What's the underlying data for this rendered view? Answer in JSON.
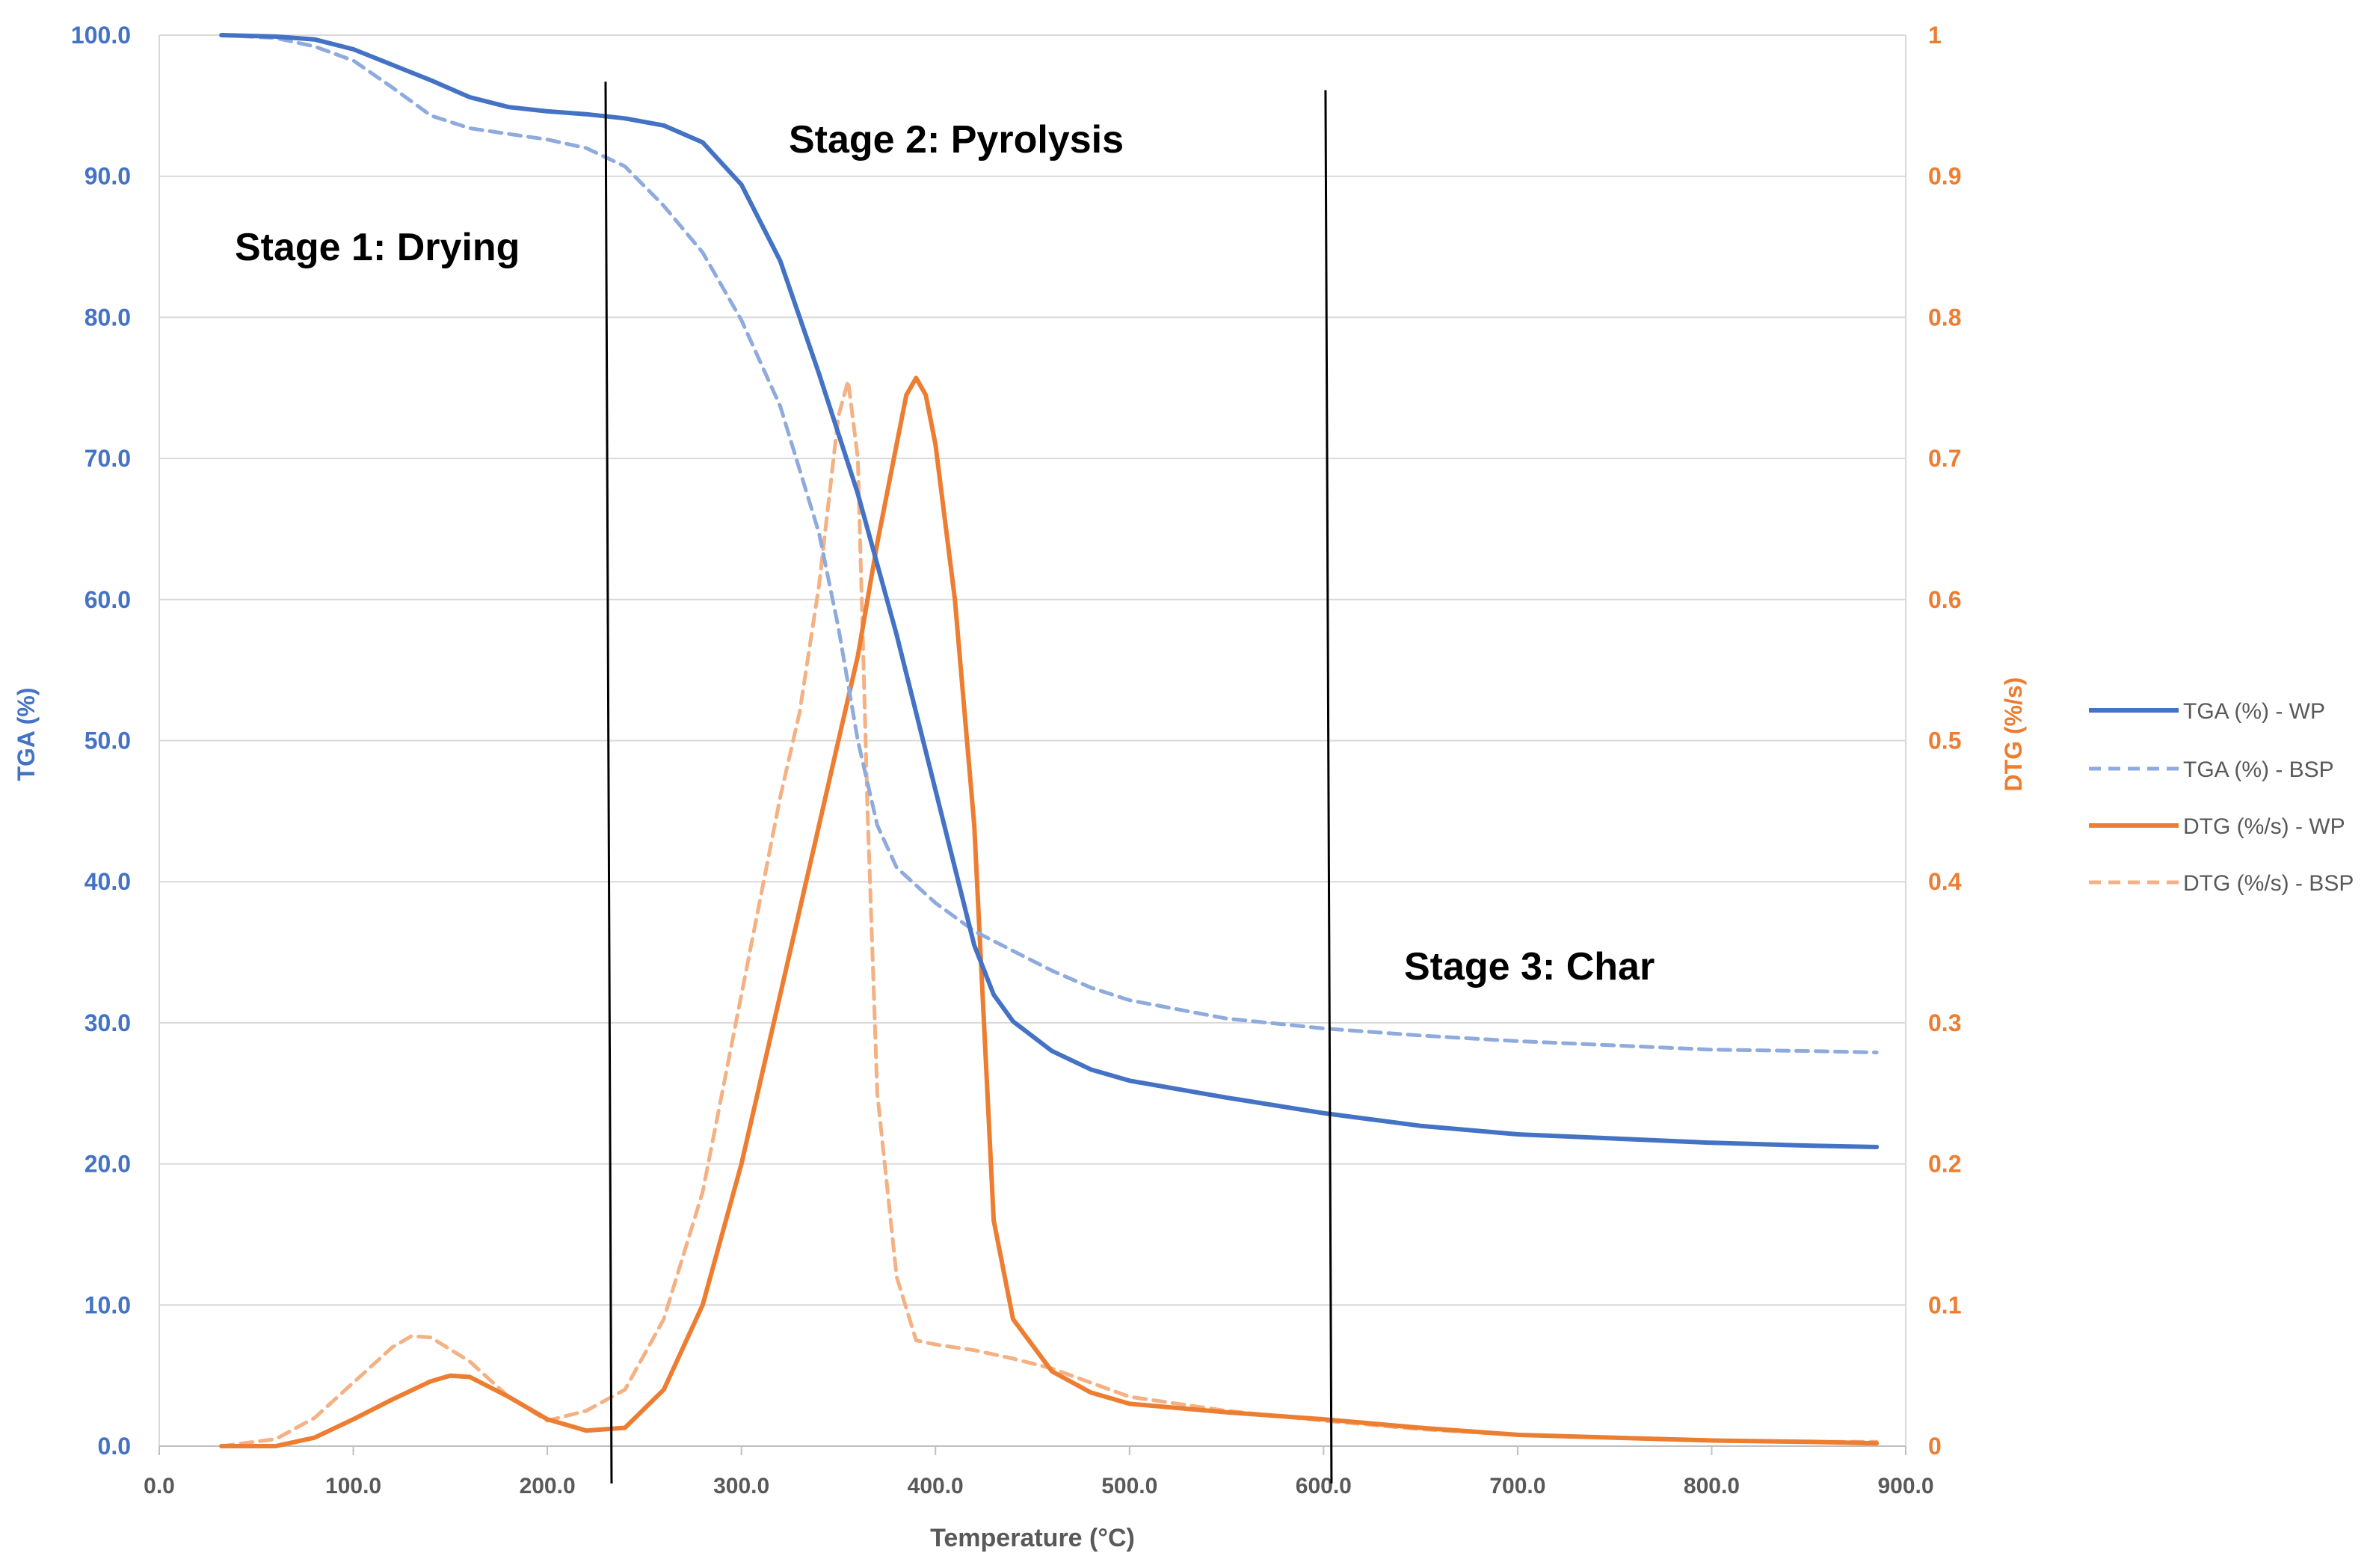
{
  "chart_data": {
    "type": "line",
    "title": "",
    "xlabel": "Temperature (°C)",
    "ylabel_left": "TGA (%)",
    "ylabel_right": "DTG (%/s)",
    "xlim": [
      0,
      900
    ],
    "ylim_left": [
      0,
      100
    ],
    "ylim_right": [
      0,
      1
    ],
    "grid": true,
    "legend_position": "right",
    "x_ticks": [
      "0.0",
      "100.0",
      "200.0",
      "300.0",
      "400.0",
      "500.0",
      "600.0",
      "700.0",
      "800.0",
      "900.0"
    ],
    "y_left_ticks": [
      "0.0",
      "10.0",
      "20.0",
      "30.0",
      "40.0",
      "50.0",
      "60.0",
      "70.0",
      "80.0",
      "90.0",
      "100.0"
    ],
    "y_right_ticks": [
      "0",
      "0.1",
      "0.2",
      "0.3",
      "0.4",
      "0.5",
      "0.6",
      "0.7",
      "0.8",
      "0.9",
      "1"
    ],
    "colors": {
      "tga_wp": "#4472C4",
      "tga_bsp": "#8FAADC",
      "dtg_wp": "#ED7D31",
      "dtg_bsp": "#F4B183",
      "stage_line": "#000000",
      "grid": "#D9D9D9"
    },
    "series": [
      {
        "name": "TGA (%) - WP",
        "axis": "left",
        "style": "solid",
        "color_key": "tga_wp",
        "x": [
          32,
          60,
          80,
          100,
          120,
          140,
          160,
          180,
          200,
          220,
          240,
          260,
          280,
          300,
          320,
          340,
          360,
          380,
          400,
          420,
          430,
          440,
          460,
          480,
          500,
          550,
          600,
          650,
          700,
          750,
          800,
          850,
          885
        ],
        "y": [
          100.0,
          99.9,
          99.7,
          99.0,
          97.9,
          96.8,
          95.6,
          94.9,
          94.6,
          94.4,
          94.1,
          93.6,
          92.4,
          89.4,
          84.0,
          76.0,
          67.5,
          57.5,
          46.5,
          35.5,
          32.0,
          30.1,
          28.0,
          26.7,
          25.9,
          24.7,
          23.6,
          22.7,
          22.1,
          21.8,
          21.5,
          21.3,
          21.2
        ]
      },
      {
        "name": "TGA (%) - BSP",
        "axis": "left",
        "style": "dashed",
        "color_key": "tga_bsp",
        "x": [
          32,
          60,
          80,
          100,
          120,
          140,
          160,
          180,
          200,
          220,
          240,
          260,
          280,
          300,
          320,
          340,
          350,
          360,
          370,
          380,
          400,
          420,
          440,
          460,
          480,
          500,
          550,
          600,
          650,
          700,
          750,
          800,
          850,
          885
        ],
        "y": [
          100.0,
          99.8,
          99.2,
          98.2,
          96.3,
          94.3,
          93.4,
          93.0,
          92.6,
          92.0,
          90.7,
          87.9,
          84.6,
          79.8,
          73.7,
          64.7,
          58.0,
          50.0,
          44.0,
          41.0,
          38.5,
          36.5,
          35.1,
          33.7,
          32.5,
          31.6,
          30.3,
          29.6,
          29.1,
          28.7,
          28.4,
          28.1,
          28.0,
          27.9
        ]
      },
      {
        "name": "DTG (%/s) - WP",
        "axis": "right",
        "style": "solid",
        "color_key": "dtg_wp",
        "x": [
          32,
          60,
          80,
          100,
          120,
          140,
          150,
          160,
          180,
          200,
          220,
          240,
          260,
          280,
          300,
          320,
          340,
          350,
          360,
          370,
          380,
          385,
          390,
          395,
          400,
          410,
          420,
          425,
          430,
          440,
          460,
          480,
          500,
          550,
          600,
          650,
          700,
          750,
          800,
          850,
          885
        ],
        "y": [
          0.0,
          0.0,
          0.006,
          0.019,
          0.033,
          0.046,
          0.05,
          0.049,
          0.035,
          0.019,
          0.011,
          0.013,
          0.04,
          0.1,
          0.2,
          0.32,
          0.44,
          0.5,
          0.56,
          0.64,
          0.71,
          0.745,
          0.757,
          0.745,
          0.71,
          0.6,
          0.44,
          0.3,
          0.16,
          0.09,
          0.053,
          0.038,
          0.03,
          0.024,
          0.019,
          0.013,
          0.008,
          0.006,
          0.004,
          0.003,
          0.002
        ]
      },
      {
        "name": "DTG (%/s) - BSP",
        "axis": "right",
        "style": "dashed",
        "color_key": "dtg_bsp",
        "x": [
          32,
          60,
          80,
          100,
          120,
          130,
          140,
          160,
          180,
          200,
          220,
          240,
          260,
          280,
          300,
          320,
          330,
          340,
          350,
          355,
          360,
          365,
          370,
          380,
          390,
          400,
          420,
          440,
          460,
          480,
          500,
          550,
          600,
          650,
          700,
          750,
          800,
          850,
          885
        ],
        "y": [
          0.0,
          0.005,
          0.02,
          0.045,
          0.07,
          0.078,
          0.077,
          0.06,
          0.035,
          0.018,
          0.025,
          0.04,
          0.09,
          0.18,
          0.32,
          0.46,
          0.52,
          0.61,
          0.73,
          0.755,
          0.7,
          0.45,
          0.25,
          0.12,
          0.075,
          0.072,
          0.068,
          0.062,
          0.055,
          0.045,
          0.035,
          0.025,
          0.018,
          0.012,
          0.008,
          0.006,
          0.004,
          0.003,
          0.003
        ]
      }
    ],
    "stage_lines": [
      {
        "x": 230,
        "y_top": 96.7
      },
      {
        "x": 601,
        "y_top": 96.1
      }
    ],
    "annotations": [
      {
        "text": "Stage 1: Drying",
        "x": 37,
        "y": 84.5
      },
      {
        "text": "Stage 2: Pyrolysis",
        "x": 320,
        "y": 92.0
      },
      {
        "text": "Stage 3: Char",
        "x": 640,
        "y": 33.9
      }
    ]
  }
}
